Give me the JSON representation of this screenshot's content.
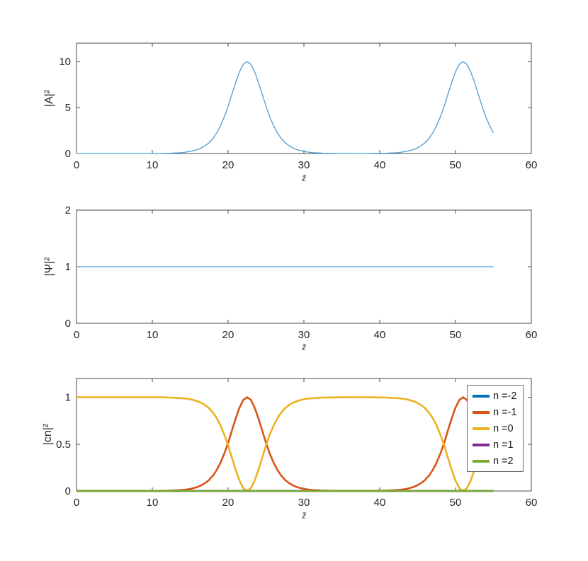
{
  "figure": {
    "background": "#ffffff",
    "axis_color": "#4a4a4a",
    "text_color": "#262626"
  },
  "chart_data": [
    {
      "type": "line",
      "title": "",
      "xlabel": "z̃",
      "ylabel": "|A|²",
      "xlim": [
        0,
        60
      ],
      "ylim": [
        0,
        12
      ],
      "xticks": [
        0,
        10,
        20,
        30,
        40,
        50,
        60
      ],
      "yticks": [
        0,
        5,
        10
      ],
      "grid": false,
      "x": [
        0,
        0.5,
        1,
        1.5,
        2,
        2.5,
        3,
        3.5,
        4,
        4.5,
        5,
        5.5,
        6,
        6.5,
        7,
        7.5,
        8,
        8.5,
        9,
        9.5,
        10,
        10.5,
        11,
        11.5,
        12,
        12.5,
        13,
        13.5,
        14,
        14.5,
        15,
        15.5,
        16,
        16.5,
        17,
        17.5,
        18,
        18.5,
        19,
        19.5,
        20,
        20.5,
        21,
        21.5,
        22,
        22.5,
        23,
        23.5,
        24,
        24.5,
        25,
        25.5,
        26,
        26.5,
        27,
        27.5,
        28,
        28.5,
        29,
        29.5,
        30,
        30.5,
        31,
        31.5,
        32,
        32.5,
        33,
        33.5,
        34,
        34.5,
        35,
        35.5,
        36,
        36.5,
        37,
        37.5,
        38,
        38.5,
        39,
        39.5,
        40,
        40.5,
        41,
        41.5,
        42,
        42.5,
        43,
        43.5,
        44,
        44.5,
        45,
        45.5,
        46,
        46.5,
        47,
        47.5,
        48,
        48.5,
        49,
        49.5,
        50,
        50.5,
        51,
        51.5,
        52,
        52.5,
        53,
        53.5,
        54,
        54.5,
        55
      ],
      "series": [
        {
          "name": "|A|^2",
          "color": "#4c9cd3",
          "width": 1.3,
          "values": [
            0,
            0,
            0,
            0,
            0,
            0,
            0,
            0,
            0,
            0,
            0,
            0,
            0,
            0,
            0,
            0,
            0,
            0,
            0,
            0,
            0,
            0,
            0,
            0,
            0.03,
            0.04,
            0.06,
            0.08,
            0.11,
            0.16,
            0.22,
            0.32,
            0.44,
            0.62,
            0.86,
            1.19,
            1.64,
            2.24,
            3.02,
            3.98,
            5.14,
            6.45,
            7.74,
            8.9,
            9.71,
            10,
            9.71,
            8.9,
            7.74,
            6.45,
            5.14,
            3.98,
            3.02,
            2.24,
            1.64,
            1.19,
            0.86,
            0.62,
            0.44,
            0.32,
            0.22,
            0.16,
            0.11,
            0.08,
            0.06,
            0.04,
            0.03,
            0.02,
            0.02,
            0.01,
            0.01,
            0.01,
            0.01,
            0,
            0,
            0,
            0,
            0,
            0.01,
            0.02,
            0.02,
            0.03,
            0.04,
            0.06,
            0.08,
            0.11,
            0.16,
            0.22,
            0.32,
            0.44,
            0.62,
            0.86,
            1.19,
            1.64,
            2.24,
            3.02,
            3.98,
            5.14,
            6.45,
            7.74,
            8.9,
            9.71,
            10,
            9.71,
            8.9,
            7.74,
            6.45,
            5.14,
            3.98,
            3.02,
            2.24
          ]
        }
      ]
    },
    {
      "type": "line",
      "title": "",
      "xlabel": "z̃",
      "ylabel": "|Ψ|²",
      "xlim": [
        0,
        60
      ],
      "ylim": [
        0,
        2
      ],
      "xticks": [
        0,
        10,
        20,
        30,
        40,
        50,
        60
      ],
      "yticks": [
        0,
        1,
        2
      ],
      "grid": false,
      "x": [
        0,
        55
      ],
      "series": [
        {
          "name": "|Ψ|^2",
          "color": "#4c9cd3",
          "width": 1.3,
          "values": [
            1,
            1
          ]
        }
      ]
    },
    {
      "type": "line",
      "title": "",
      "xlabel": "z̃",
      "ylabel": "|cn|²",
      "xlim": [
        0,
        60
      ],
      "ylim": [
        0,
        1.2
      ],
      "xticks": [
        0,
        10,
        20,
        30,
        40,
        50,
        60
      ],
      "yticks": [
        0,
        0.5,
        1
      ],
      "grid": false,
      "legend": {
        "position": "northeast"
      },
      "x": [
        0,
        0.5,
        1,
        1.5,
        2,
        2.5,
        3,
        3.5,
        4,
        4.5,
        5,
        5.5,
        6,
        6.5,
        7,
        7.5,
        8,
        8.5,
        9,
        9.5,
        10,
        10.5,
        11,
        11.5,
        12,
        12.5,
        13,
        13.5,
        14,
        14.5,
        15,
        15.5,
        16,
        16.5,
        17,
        17.5,
        18,
        18.5,
        19,
        19.5,
        20,
        20.5,
        21,
        21.5,
        22,
        22.5,
        23,
        23.5,
        24,
        24.5,
        25,
        25.5,
        26,
        26.5,
        27,
        27.5,
        28,
        28.5,
        29,
        29.5,
        30,
        30.5,
        31,
        31.5,
        32,
        32.5,
        33,
        33.5,
        34,
        34.5,
        35,
        35.5,
        36,
        36.5,
        37,
        37.5,
        38,
        38.5,
        39,
        39.5,
        40,
        40.5,
        41,
        41.5,
        42,
        42.5,
        43,
        43.5,
        44,
        44.5,
        45,
        45.5,
        46,
        46.5,
        47,
        47.5,
        48,
        48.5,
        49,
        49.5,
        50,
        50.5,
        51,
        51.5,
        52,
        52.5,
        53,
        53.5,
        54,
        54.5,
        55
      ],
      "series": [
        {
          "name": "n =-2",
          "color": "#0072BD",
          "width": 2.6,
          "x": [
            0,
            55
          ],
          "values": [
            0,
            0
          ]
        },
        {
          "name": "n =-1",
          "color": "#D95319",
          "width": 2.6,
          "values": [
            0,
            0,
            0,
            0,
            0,
            0,
            0,
            0,
            0,
            0,
            0,
            0,
            0,
            0,
            0,
            0,
            0,
            0,
            0,
            0,
            0,
            0,
            0,
            0,
            0.003,
            0.004,
            0.006,
            0.008,
            0.011,
            0.016,
            0.022,
            0.032,
            0.044,
            0.062,
            0.086,
            0.119,
            0.164,
            0.224,
            0.302,
            0.398,
            0.514,
            0.645,
            0.774,
            0.89,
            0.971,
            1,
            0.971,
            0.89,
            0.774,
            0.645,
            0.514,
            0.398,
            0.302,
            0.224,
            0.164,
            0.119,
            0.086,
            0.062,
            0.044,
            0.032,
            0.022,
            0.016,
            0.011,
            0.008,
            0.006,
            0.004,
            0.003,
            0.002,
            0.002,
            0.001,
            0.001,
            0.001,
            0.001,
            0,
            0,
            0,
            0,
            0,
            0.001,
            0.002,
            0.002,
            0.003,
            0.004,
            0.006,
            0.008,
            0.011,
            0.016,
            0.022,
            0.032,
            0.044,
            0.062,
            0.086,
            0.119,
            0.164,
            0.224,
            0.302,
            0.398,
            0.514,
            0.645,
            0.774,
            0.89,
            0.971,
            1,
            0.971,
            0.89,
            0.774,
            0.645,
            0.514,
            0.398,
            0.302,
            0.224
          ]
        },
        {
          "name": "n =0",
          "color": "#EDB120",
          "width": 2.6,
          "values": [
            1,
            1,
            1,
            1,
            1,
            1,
            1,
            1,
            1,
            1,
            1,
            1,
            1,
            1,
            1,
            1,
            1,
            1,
            1,
            1,
            1,
            1,
            1,
            1,
            0.997,
            0.996,
            0.994,
            0.992,
            0.989,
            0.984,
            0.978,
            0.968,
            0.956,
            0.938,
            0.914,
            0.881,
            0.836,
            0.776,
            0.698,
            0.602,
            0.486,
            0.355,
            0.226,
            0.11,
            0.029,
            0,
            0.029,
            0.11,
            0.226,
            0.355,
            0.486,
            0.602,
            0.698,
            0.776,
            0.836,
            0.881,
            0.914,
            0.938,
            0.956,
            0.968,
            0.978,
            0.984,
            0.989,
            0.992,
            0.994,
            0.996,
            0.997,
            0.998,
            0.998,
            0.999,
            0.999,
            0.999,
            0.999,
            1,
            1,
            1,
            1,
            1,
            0.999,
            0.998,
            0.998,
            0.997,
            0.996,
            0.994,
            0.992,
            0.989,
            0.984,
            0.978,
            0.968,
            0.956,
            0.938,
            0.914,
            0.881,
            0.836,
            0.776,
            0.698,
            0.602,
            0.486,
            0.355,
            0.226,
            0.11,
            0.029,
            0,
            0.029,
            0.11,
            0.226,
            0.355,
            0.486,
            0.602,
            0.698,
            0.776
          ]
        },
        {
          "name": "n =1",
          "color": "#7E2F8E",
          "width": 2.6,
          "x": [
            0,
            55
          ],
          "values": [
            0,
            0
          ]
        },
        {
          "name": "n =2",
          "color": "#77AC30",
          "width": 2.6,
          "x": [
            0,
            55
          ],
          "values": [
            0,
            0
          ]
        }
      ]
    }
  ]
}
